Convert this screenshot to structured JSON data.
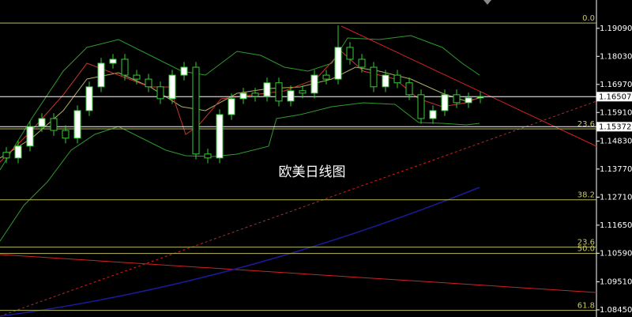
{
  "chart_data": {
    "type": "candlestick",
    "annotation": "欧美日线图",
    "ylim": [
      1.0818,
      1.2016
    ],
    "yticks": [
      {
        "value": 1.1909,
        "label": "1.19090"
      },
      {
        "value": 1.1803,
        "label": "1.18030"
      },
      {
        "value": 1.1697,
        "label": "1.16970"
      },
      {
        "value": 1.1591,
        "label": "1.15910"
      },
      {
        "value": 1.1483,
        "label": "1.14830"
      },
      {
        "value": 1.1377,
        "label": "1.13770"
      },
      {
        "value": 1.1271,
        "label": "1.12710"
      },
      {
        "value": 1.1165,
        "label": "1.11650"
      },
      {
        "value": 1.1059,
        "label": "1.10590"
      },
      {
        "value": 1.0951,
        "label": "1.09510"
      },
      {
        "value": 1.0845,
        "label": "1.08450"
      }
    ],
    "price_lines": [
      {
        "value": 1.16507,
        "label": "1.16507"
      },
      {
        "value": 1.15372,
        "label": "1.15372"
      }
    ],
    "fib_levels": [
      {
        "value": 1.1929,
        "label": "0.0"
      },
      {
        "value": 1.1529,
        "label": "23.6"
      },
      {
        "value": 1.1261,
        "label": "38.2"
      },
      {
        "value": 1.1082,
        "label": "23.6"
      },
      {
        "value": 1.1058,
        "label": "50.0"
      },
      {
        "value": 1.0843,
        "label": "61.8"
      }
    ],
    "up_color": "#ffffff",
    "down_color": "#000000",
    "wick_color": "#33cc33",
    "open": [
      1.144,
      1.1419,
      1.1464,
      1.1538,
      1.1568,
      1.1523,
      1.1494,
      1.1598,
      1.1688,
      1.1777,
      1.1792,
      1.1732,
      1.1717,
      1.1688,
      1.1643,
      1.1732,
      1.1762,
      1.1434,
      1.1419,
      1.1583,
      1.1643,
      1.1664,
      1.1652,
      1.1703,
      1.1634,
      1.1673,
      1.1664,
      1.1732,
      1.1717,
      1.1837,
      1.1792,
      1.1762,
      1.1688,
      1.1732,
      1.1703,
      1.1658,
      1.1568,
      1.1598,
      1.1658,
      1.1628,
      1.1646
    ],
    "high": [
      1.146,
      1.1484,
      1.1558,
      1.1588,
      1.1588,
      1.1543,
      1.1618,
      1.1708,
      1.1797,
      1.1812,
      1.1812,
      1.1752,
      1.1737,
      1.1708,
      1.1752,
      1.1782,
      1.1782,
      1.1454,
      1.1603,
      1.1663,
      1.1684,
      1.1684,
      1.1723,
      1.1723,
      1.1693,
      1.1693,
      1.1752,
      1.1752,
      1.192,
      1.1857,
      1.1812,
      1.1782,
      1.1752,
      1.1752,
      1.1723,
      1.1678,
      1.1618,
      1.1678,
      1.1678,
      1.1666,
      1.1671
    ],
    "low": [
      1.1399,
      1.1399,
      1.1444,
      1.1518,
      1.1503,
      1.1474,
      1.1474,
      1.1578,
      1.1668,
      1.1757,
      1.1712,
      1.1697,
      1.1668,
      1.1623,
      1.1623,
      1.1712,
      1.1414,
      1.1399,
      1.1399,
      1.1563,
      1.1623,
      1.1632,
      1.1632,
      1.1614,
      1.1614,
      1.1644,
      1.1644,
      1.1697,
      1.1697,
      1.1772,
      1.1742,
      1.1668,
      1.1668,
      1.1683,
      1.1638,
      1.1548,
      1.1548,
      1.1578,
      1.1608,
      1.1608,
      1.1626
    ],
    "close": [
      1.1419,
      1.1464,
      1.1538,
      1.1568,
      1.1523,
      1.1494,
      1.1598,
      1.1688,
      1.1777,
      1.1792,
      1.1732,
      1.1717,
      1.1688,
      1.1643,
      1.1732,
      1.1762,
      1.1434,
      1.1419,
      1.1583,
      1.1643,
      1.1664,
      1.1652,
      1.1703,
      1.1634,
      1.1673,
      1.1664,
      1.1732,
      1.1717,
      1.1837,
      1.1792,
      1.1762,
      1.1688,
      1.1732,
      1.1703,
      1.1658,
      1.1568,
      1.1598,
      1.1658,
      1.1628,
      1.1646,
      1.1651
    ]
  }
}
